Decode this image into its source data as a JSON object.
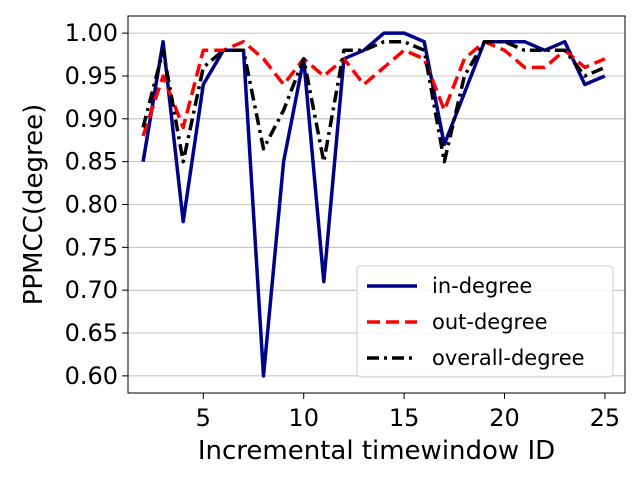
{
  "chart_data": {
    "type": "line",
    "title": "",
    "xlabel": "Incremental timewindow ID",
    "ylabel": "PPMCC(degree)",
    "xlim": [
      1.25,
      26.0
    ],
    "ylim": [
      0.58,
      1.02
    ],
    "xticks": [
      5,
      10,
      15,
      20,
      25
    ],
    "yticks": [
      0.6,
      0.65,
      0.7,
      0.75,
      0.8,
      0.85,
      0.9,
      0.95,
      1.0
    ],
    "ytick_labels": [
      "0.60",
      "0.65",
      "0.70",
      "0.75",
      "0.80",
      "0.85",
      "0.90",
      "0.95",
      "1.00"
    ],
    "grid": "horizontal",
    "legend_position": "lower-right",
    "x": [
      2,
      3,
      4,
      5,
      6,
      7,
      8,
      9,
      10,
      11,
      12,
      13,
      14,
      15,
      16,
      17,
      18,
      19,
      20,
      21,
      22,
      23,
      24,
      25
    ],
    "series": [
      {
        "name": "in-degree",
        "color": "#00008b",
        "style": "solid",
        "values": [
          0.85,
          0.99,
          0.78,
          0.94,
          0.98,
          0.98,
          0.6,
          0.85,
          0.97,
          0.71,
          0.97,
          0.98,
          1.0,
          1.0,
          0.99,
          0.87,
          0.93,
          0.99,
          0.99,
          0.99,
          0.98,
          0.99,
          0.94,
          0.95
        ]
      },
      {
        "name": "out-degree",
        "color": "#ff0000",
        "style": "dashed",
        "values": [
          0.88,
          0.95,
          0.89,
          0.98,
          0.98,
          0.99,
          0.97,
          0.94,
          0.97,
          0.95,
          0.97,
          0.94,
          0.96,
          0.98,
          0.97,
          0.91,
          0.97,
          0.99,
          0.98,
          0.96,
          0.96,
          0.98,
          0.96,
          0.97
        ]
      },
      {
        "name": "overall-degree",
        "color": "#000000",
        "style": "dashdot",
        "values": [
          0.89,
          0.98,
          0.85,
          0.96,
          0.98,
          0.98,
          0.865,
          0.91,
          0.97,
          0.85,
          0.98,
          0.98,
          0.99,
          0.99,
          0.98,
          0.85,
          0.95,
          0.99,
          0.99,
          0.98,
          0.98,
          0.98,
          0.95,
          0.96
        ]
      }
    ]
  }
}
